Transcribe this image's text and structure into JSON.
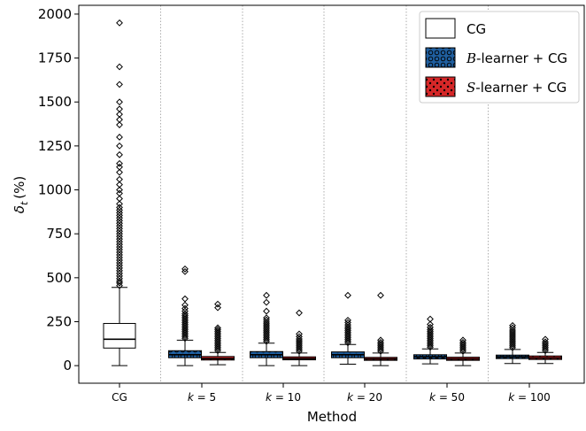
{
  "chart_data": {
    "type": "boxplot",
    "xlabel": "Method",
    "ylabel": "δt (%)",
    "ylabel_main": "δ",
    "ylabel_sub": "t",
    "ylabel_unit": "(%)",
    "ylim": [
      -100,
      2050
    ],
    "yticks": [
      0,
      250,
      500,
      750,
      1000,
      1250,
      1500,
      1750,
      2000
    ],
    "grid": "vertical dotted separators between categories",
    "legend_position": "top-right",
    "categories": [
      {
        "label": "CG",
        "prefix": "",
        "suffix": ""
      },
      {
        "label": "k = 5",
        "prefix": "k",
        "suffix": " = 5"
      },
      {
        "label": "k = 10",
        "prefix": "k",
        "suffix": " = 10"
      },
      {
        "label": "k = 20",
        "prefix": "k",
        "suffix": " = 20"
      },
      {
        "label": "k = 50",
        "prefix": "k",
        "suffix": " = 50"
      },
      {
        "label": "k = 100",
        "prefix": "k",
        "suffix": " = 100"
      }
    ],
    "series": [
      {
        "name": "CG",
        "name_script": "",
        "name_rest": "CG",
        "color": "#ffffff",
        "pattern": "none"
      },
      {
        "name": "B-learner + CG",
        "name_script": "B",
        "name_rest": "-learner + CG",
        "color": "#1f5fa0",
        "pattern": "circles"
      },
      {
        "name": "S-learner + CG",
        "name_script": "S",
        "name_rest": "-learner + CG",
        "color": "#d62728",
        "pattern": "dots"
      }
    ],
    "boxes": [
      {
        "category": 0,
        "series": 0,
        "q1": 100,
        "median": 150,
        "q3": 240,
        "whisker_low": 0,
        "whisker_high": 445,
        "fliers": [
          455,
          470,
          480,
          495,
          510,
          525,
          540,
          555,
          570,
          585,
          600,
          615,
          630,
          645,
          660,
          675,
          690,
          705,
          720,
          735,
          750,
          765,
          780,
          795,
          810,
          825,
          840,
          855,
          870,
          885,
          900,
          920,
          950,
          980,
          1000,
          1030,
          1060,
          1100,
          1130,
          1150,
          1200,
          1250,
          1300,
          1370,
          1400,
          1430,
          1460,
          1500,
          1600,
          1700,
          1950
        ]
      },
      {
        "category": 1,
        "series": 1,
        "q1": 45,
        "median": 62,
        "q3": 85,
        "whisker_low": 0,
        "whisker_high": 145,
        "fliers": [
          155,
          165,
          175,
          185,
          195,
          205,
          215,
          225,
          235,
          245,
          255,
          265,
          275,
          285,
          295,
          310,
          325,
          345,
          380,
          535,
          550
        ]
      },
      {
        "category": 1,
        "series": 2,
        "q1": 32,
        "median": 40,
        "q3": 52,
        "whisker_low": 5,
        "whisker_high": 75,
        "fliers": [
          85,
          95,
          105,
          115,
          125,
          135,
          145,
          155,
          165,
          175,
          185,
          195,
          205,
          215,
          330,
          350
        ]
      },
      {
        "category": 2,
        "series": 1,
        "q1": 45,
        "median": 62,
        "q3": 80,
        "whisker_low": 0,
        "whisker_high": 128,
        "fliers": [
          138,
          148,
          158,
          168,
          178,
          188,
          198,
          208,
          218,
          228,
          238,
          248,
          260,
          272,
          310,
          360,
          400
        ]
      },
      {
        "category": 2,
        "series": 2,
        "q1": 33,
        "median": 40,
        "q3": 50,
        "whisker_low": 0,
        "whisker_high": 72,
        "fliers": [
          82,
          92,
          102,
          112,
          122,
          132,
          142,
          152,
          165,
          180,
          300
        ]
      },
      {
        "category": 3,
        "series": 1,
        "q1": 45,
        "median": 62,
        "q3": 78,
        "whisker_low": 8,
        "whisker_high": 120,
        "fliers": [
          130,
          140,
          150,
          160,
          170,
          180,
          190,
          200,
          210,
          220,
          232,
          245,
          258,
          400
        ]
      },
      {
        "category": 3,
        "series": 2,
        "q1": 30,
        "median": 38,
        "q3": 47,
        "whisker_low": 0,
        "whisker_high": 72,
        "fliers": [
          82,
          92,
          102,
          112,
          122,
          132,
          145,
          400
        ]
      },
      {
        "category": 4,
        "series": 1,
        "q1": 38,
        "median": 50,
        "q3": 62,
        "whisker_low": 10,
        "whisker_high": 95,
        "fliers": [
          105,
          115,
          125,
          135,
          145,
          155,
          165,
          175,
          185,
          195,
          205,
          218,
          235,
          265
        ]
      },
      {
        "category": 4,
        "series": 2,
        "q1": 30,
        "median": 38,
        "q3": 48,
        "whisker_low": 0,
        "whisker_high": 72,
        "fliers": [
          82,
          92,
          102,
          112,
          122,
          132,
          145
        ]
      },
      {
        "category": 5,
        "series": 1,
        "q1": 40,
        "median": 50,
        "q3": 60,
        "whisker_low": 12,
        "whisker_high": 92,
        "fliers": [
          102,
          112,
          122,
          132,
          142,
          152,
          162,
          172,
          182,
          192,
          202,
          215,
          228
        ]
      },
      {
        "category": 5,
        "series": 2,
        "q1": 35,
        "median": 44,
        "q3": 55,
        "whisker_low": 12,
        "whisker_high": 75,
        "fliers": [
          85,
          95,
          105,
          115,
          125,
          135,
          150
        ]
      }
    ]
  }
}
